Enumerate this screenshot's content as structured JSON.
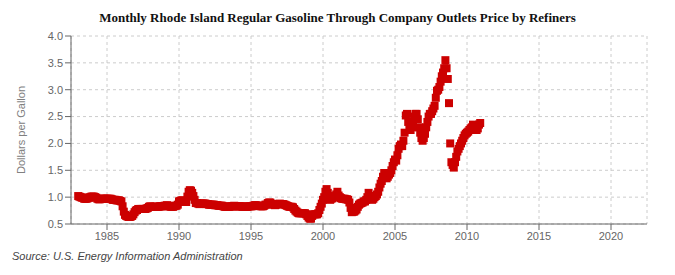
{
  "chart_data": {
    "type": "scatter",
    "title": "Monthly Rhode Island Regular Gasoline Through Company Outlets Price by Refiners",
    "ylabel": "Dollars per Gallon",
    "annotations": [
      "Source: U.S. Energy Information Administration"
    ],
    "color": "#cc0000",
    "marker": "square",
    "grid": true,
    "xlim": [
      1982.5,
      2022.5
    ],
    "xticks": [
      1985,
      1990,
      1995,
      2000,
      2005,
      2010,
      2015,
      2020
    ],
    "ylim": [
      0.5,
      4.0
    ],
    "yticks": [
      0.5,
      {
        "value": 1.0,
        "label": "1.0"
      },
      1.5,
      {
        "value": 2.0,
        "label": "2.0"
      },
      2.5,
      {
        "value": 3.0,
        "label": "3.0"
      },
      3.5,
      {
        "value": 4.0,
        "label": "4.0"
      }
    ],
    "x": [
      1983.0,
      1983.083,
      1983.167,
      1983.25,
      1983.333,
      1983.417,
      1983.5,
      1983.583,
      1983.667,
      1983.75,
      1983.833,
      1983.917,
      1984.0,
      1984.083,
      1984.167,
      1984.25,
      1984.333,
      1984.417,
      1984.5,
      1984.583,
      1984.667,
      1984.75,
      1984.833,
      1984.917,
      1985.0,
      1985.083,
      1985.167,
      1985.25,
      1985.333,
      1985.417,
      1985.5,
      1985.583,
      1985.667,
      1985.75,
      1985.833,
      1985.917,
      1986.0,
      1986.083,
      1986.167,
      1986.25,
      1986.333,
      1986.417,
      1986.5,
      1986.583,
      1986.667,
      1986.75,
      1986.833,
      1986.917,
      1987.0,
      1987.083,
      1987.167,
      1987.25,
      1987.333,
      1987.417,
      1987.5,
      1987.583,
      1987.667,
      1987.75,
      1987.833,
      1987.917,
      1988.0,
      1988.083,
      1988.167,
      1988.25,
      1988.333,
      1988.417,
      1988.5,
      1988.583,
      1988.667,
      1988.75,
      1988.833,
      1988.917,
      1989.0,
      1989.083,
      1989.167,
      1989.25,
      1989.333,
      1989.417,
      1989.5,
      1989.583,
      1989.667,
      1989.75,
      1989.833,
      1989.917,
      1990.0,
      1990.083,
      1990.167,
      1990.25,
      1990.333,
      1990.417,
      1990.5,
      1990.583,
      1990.667,
      1990.75,
      1990.833,
      1990.917,
      1991.0,
      1991.083,
      1991.167,
      1991.25,
      1991.333,
      1991.417,
      1991.5,
      1991.583,
      1991.667,
      1991.75,
      1991.833,
      1991.917,
      1992.0,
      1992.083,
      1992.167,
      1992.25,
      1992.333,
      1992.417,
      1992.5,
      1992.583,
      1992.667,
      1992.75,
      1992.833,
      1992.917,
      1993.0,
      1993.083,
      1993.167,
      1993.25,
      1993.333,
      1993.417,
      1993.5,
      1993.583,
      1993.667,
      1993.75,
      1993.833,
      1993.917,
      1994.0,
      1994.083,
      1994.167,
      1994.25,
      1994.333,
      1994.417,
      1994.5,
      1994.583,
      1994.667,
      1994.75,
      1994.833,
      1994.917,
      1995.0,
      1995.083,
      1995.167,
      1995.25,
      1995.333,
      1995.417,
      1995.5,
      1995.583,
      1995.667,
      1995.75,
      1995.833,
      1995.917,
      1996.0,
      1996.083,
      1996.167,
      1996.25,
      1996.333,
      1996.417,
      1996.5,
      1996.583,
      1996.667,
      1996.75,
      1996.833,
      1996.917,
      1997.0,
      1997.083,
      1997.167,
      1997.25,
      1997.333,
      1997.417,
      1997.5,
      1997.583,
      1997.667,
      1997.75,
      1997.833,
      1997.917,
      1998.0,
      1998.083,
      1998.167,
      1998.25,
      1998.333,
      1998.417,
      1998.5,
      1998.583,
      1998.667,
      1998.75,
      1998.833,
      1998.917,
      1999.0,
      1999.083,
      1999.167,
      1999.25,
      1999.333,
      1999.417,
      1999.5,
      1999.583,
      1999.667,
      1999.75,
      1999.833,
      1999.917,
      2000.0,
      2000.083,
      2000.167,
      2000.25,
      2000.333,
      2000.417,
      2000.5,
      2000.583,
      2000.667,
      2000.75,
      2000.833,
      2000.917,
      2001.0,
      2001.083,
      2001.167,
      2001.25,
      2001.333,
      2001.417,
      2001.5,
      2001.583,
      2001.667,
      2001.75,
      2001.833,
      2001.917,
      2002.0,
      2002.083,
      2002.167,
      2002.25,
      2002.333,
      2002.417,
      2002.5,
      2002.583,
      2002.667,
      2002.75,
      2002.833,
      2002.917,
      2003.0,
      2003.083,
      2003.167,
      2003.25,
      2003.333,
      2003.417,
      2003.5,
      2003.583,
      2003.667,
      2003.75,
      2003.833,
      2003.917,
      2004.0,
      2004.083,
      2004.167,
      2004.25,
      2004.333,
      2004.417,
      2004.5,
      2004.583,
      2004.667,
      2004.75,
      2004.833,
      2004.917,
      2005.0,
      2005.083,
      2005.167,
      2005.25,
      2005.333,
      2005.417,
      2005.5,
      2005.583,
      2005.667,
      2005.75,
      2005.833,
      2005.917,
      2006.0,
      2006.083,
      2006.167,
      2006.25,
      2006.333,
      2006.417,
      2006.5,
      2006.583,
      2006.667,
      2006.75,
      2006.833,
      2006.917,
      2007.0,
      2007.083,
      2007.167,
      2007.25,
      2007.333,
      2007.417,
      2007.5,
      2007.583,
      2007.667,
      2007.75,
      2007.833,
      2007.917,
      2008.0,
      2008.083,
      2008.167,
      2008.25,
      2008.333,
      2008.417,
      2008.5,
      2008.583,
      2008.667,
      2008.75,
      2008.833,
      2008.917,
      2009.0,
      2009.083,
      2009.167,
      2009.25,
      2009.333,
      2009.417,
      2009.5,
      2009.583,
      2009.667,
      2009.75,
      2009.833,
      2009.917,
      2010.0,
      2010.083,
      2010.167,
      2010.25,
      2010.333,
      2010.417,
      2010.5,
      2010.583,
      2010.667,
      2010.75,
      2010.833,
      2010.917
    ],
    "values": [
      1.02,
      1.01,
      1.0,
      0.99,
      0.99,
      0.97,
      0.97,
      0.97,
      0.98,
      0.99,
      1.0,
      1.01,
      1.01,
      1.01,
      1.0,
      0.99,
      0.97,
      0.96,
      0.96,
      0.97,
      0.97,
      0.97,
      0.97,
      0.97,
      0.97,
      0.97,
      0.97,
      0.97,
      0.96,
      0.95,
      0.95,
      0.95,
      0.94,
      0.94,
      0.94,
      0.93,
      0.92,
      0.83,
      0.73,
      0.67,
      0.65,
      0.64,
      0.63,
      0.63,
      0.64,
      0.65,
      0.68,
      0.72,
      0.75,
      0.76,
      0.78,
      0.78,
      0.78,
      0.78,
      0.78,
      0.78,
      0.78,
      0.79,
      0.8,
      0.82,
      0.83,
      0.82,
      0.82,
      0.82,
      0.82,
      0.82,
      0.82,
      0.82,
      0.83,
      0.83,
      0.83,
      0.83,
      0.84,
      0.84,
      0.85,
      0.84,
      0.83,
      0.82,
      0.82,
      0.82,
      0.83,
      0.84,
      0.84,
      0.86,
      0.92,
      0.93,
      0.94,
      0.94,
      0.92,
      0.91,
      0.91,
      1.01,
      1.1,
      1.13,
      1.12,
      1.08,
      1.02,
      0.95,
      0.89,
      0.89,
      0.88,
      0.87,
      0.88,
      0.88,
      0.88,
      0.88,
      0.88,
      0.87,
      0.87,
      0.86,
      0.86,
      0.86,
      0.86,
      0.86,
      0.85,
      0.85,
      0.85,
      0.84,
      0.84,
      0.84,
      0.84,
      0.83,
      0.82,
      0.82,
      0.82,
      0.82,
      0.82,
      0.83,
      0.83,
      0.83,
      0.84,
      0.83,
      0.83,
      0.83,
      0.83,
      0.83,
      0.83,
      0.82,
      0.82,
      0.82,
      0.82,
      0.82,
      0.83,
      0.83,
      0.83,
      0.83,
      0.84,
      0.85,
      0.85,
      0.84,
      0.84,
      0.84,
      0.83,
      0.83,
      0.83,
      0.84,
      0.86,
      0.86,
      0.89,
      0.9,
      0.9,
      0.88,
      0.87,
      0.86,
      0.85,
      0.86,
      0.87,
      0.87,
      0.88,
      0.87,
      0.87,
      0.87,
      0.86,
      0.85,
      0.84,
      0.83,
      0.82,
      0.82,
      0.82,
      0.81,
      0.78,
      0.75,
      0.73,
      0.71,
      0.7,
      0.7,
      0.7,
      0.7,
      0.7,
      0.7,
      0.68,
      0.65,
      0.62,
      0.6,
      0.6,
      0.65,
      0.68,
      0.68,
      0.68,
      0.68,
      0.7,
      0.76,
      0.82,
      0.88,
      0.95,
      1.0,
      1.1,
      1.15,
      1.08,
      0.98,
      0.95,
      0.97,
      0.98,
      1.0,
      1.02,
      1.05,
      1.1,
      1.03,
      1.0,
      0.98,
      0.97,
      0.97,
      0.97,
      0.96,
      0.96,
      0.95,
      0.9,
      0.8,
      0.72,
      0.73,
      0.73,
      0.75,
      0.77,
      0.82,
      0.86,
      0.88,
      0.89,
      0.9,
      0.92,
      0.92,
      0.95,
      1.0,
      1.08,
      1.02,
      0.97,
      0.95,
      0.97,
      1.0,
      1.02,
      1.05,
      1.1,
      1.18,
      1.25,
      1.3,
      1.38,
      1.45,
      1.42,
      1.35,
      1.38,
      1.42,
      1.45,
      1.5,
      1.58,
      1.65,
      1.7,
      1.68,
      1.78,
      1.9,
      1.95,
      1.98,
      1.95,
      2.05,
      2.2,
      2.52,
      2.55,
      2.4,
      2.3,
      2.25,
      2.3,
      2.4,
      2.5,
      2.55,
      2.55,
      2.45,
      2.3,
      2.2,
      2.1,
      2.05,
      2.1,
      2.18,
      2.3,
      2.4,
      2.5,
      2.55,
      2.55,
      2.6,
      2.65,
      2.7,
      2.85,
      2.98,
      3.0,
      3.05,
      3.15,
      3.25,
      3.32,
      3.4,
      3.55,
      3.4,
      3.2,
      2.75,
      2.0,
      1.65,
      1.6,
      1.55,
      1.65,
      1.75,
      1.85,
      1.9,
      1.95,
      2.0,
      2.05,
      2.1,
      2.15,
      2.18,
      2.2,
      2.22,
      2.25,
      2.28,
      2.3,
      2.35,
      2.3,
      2.25,
      2.25,
      2.28,
      2.35,
      2.38
    ]
  }
}
